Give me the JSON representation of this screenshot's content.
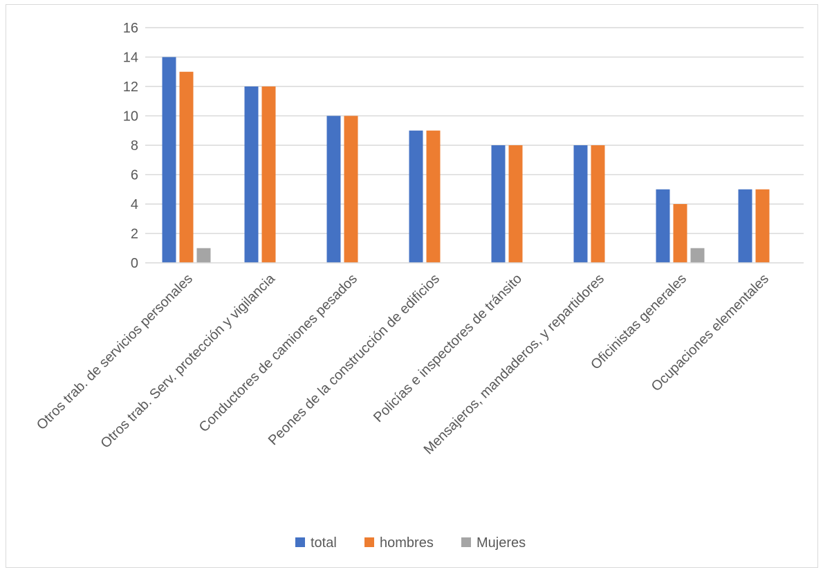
{
  "chart_data": {
    "type": "bar",
    "categories": [
      "Otros trab. de servicios personales",
      "Otros trab. Serv. protección y vigilancia",
      "Conductores de camiones pesados",
      "Peones de la construcción de edificios",
      "Policías e inspectores de tránsito",
      "Mensajeros, mandaderos, y repartidores",
      "Oficinistas generales",
      "Ocupaciones elementales"
    ],
    "series": [
      {
        "name": "total",
        "color": "#4472C4",
        "values": [
          14,
          12,
          10,
          9,
          8,
          8,
          5,
          5
        ]
      },
      {
        "name": "hombres",
        "color": "#ED7D31",
        "values": [
          13,
          12,
          10,
          9,
          8,
          8,
          4,
          5
        ]
      },
      {
        "name": "Mujeres",
        "color": "#A5A5A5",
        "values": [
          1,
          0,
          0,
          0,
          0,
          0,
          1,
          0
        ]
      }
    ],
    "title": "",
    "xlabel": "",
    "ylabel": "",
    "ylim": [
      0,
      16
    ],
    "yticks": [
      "0",
      "2",
      "4",
      "6",
      "8",
      "10",
      "12",
      "14",
      "16"
    ],
    "grid": true,
    "legend_position": "bottom"
  }
}
